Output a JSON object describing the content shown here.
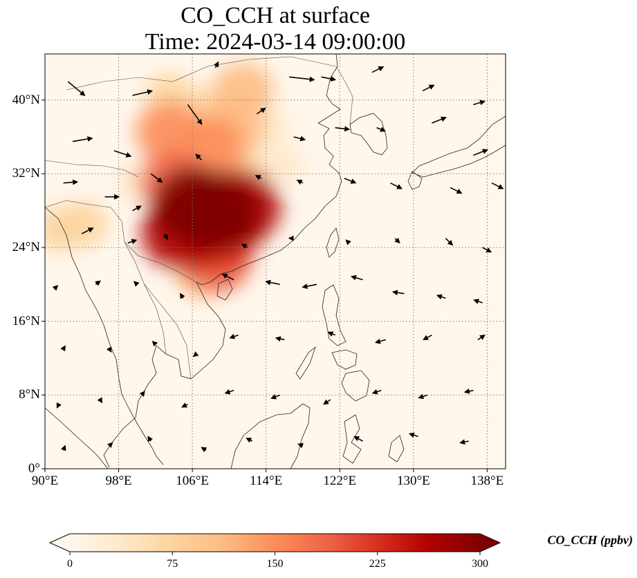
{
  "title": {
    "line1": "CO_CCH at surface",
    "line2": "Time: 2024-03-14 09:00:00"
  },
  "map": {
    "lon_range": [
      90,
      140
    ],
    "lat_range": [
      0,
      45
    ],
    "lat_ticks": [
      {
        "value": 0,
        "label": "0°"
      },
      {
        "value": 8,
        "label": "8°N"
      },
      {
        "value": 16,
        "label": "16°N"
      },
      {
        "value": 24,
        "label": "24°N"
      },
      {
        "value": 32,
        "label": "32°N"
      },
      {
        "value": 40,
        "label": "40°N"
      }
    ],
    "lon_ticks": [
      {
        "value": 90,
        "label": "90°E"
      },
      {
        "value": 98,
        "label": "98°E"
      },
      {
        "value": 106,
        "label": "106°E"
      },
      {
        "value": 114,
        "label": "114°E"
      },
      {
        "value": 122,
        "label": "122°E"
      },
      {
        "value": 130,
        "label": "130°E"
      },
      {
        "value": 138,
        "label": "138°E"
      }
    ],
    "gridlines": "dotted",
    "plume_regions": [
      {
        "lon": 106.3,
        "lat": 28.6,
        "level": 300
      },
      {
        "lon": 108.8,
        "lat": 27.6,
        "level": 290
      },
      {
        "lon": 111.0,
        "lat": 28.4,
        "level": 280
      },
      {
        "lon": 105.0,
        "lat": 25.6,
        "level": 270
      },
      {
        "lon": 109.0,
        "lat": 25.0,
        "level": 210
      },
      {
        "lon": 108.4,
        "lat": 22.6,
        "level": 190
      },
      {
        "lon": 104.0,
        "lat": 31.0,
        "level": 170
      },
      {
        "lon": 103.5,
        "lat": 36.5,
        "level": 150
      },
      {
        "lon": 108.0,
        "lat": 35.0,
        "level": 150
      },
      {
        "lon": 110.5,
        "lat": 37.0,
        "level": 130
      },
      {
        "lon": 107.0,
        "lat": 38.5,
        "level": 90
      },
      {
        "lon": 111.5,
        "lat": 41.0,
        "level": 120
      },
      {
        "lon": 103.5,
        "lat": 40.5,
        "level": 60
      },
      {
        "lon": 94.0,
        "lat": 26.5,
        "level": 70
      },
      {
        "lon": 91.5,
        "lat": 26.0,
        "level": 60
      },
      {
        "lon": 107.0,
        "lat": 21.0,
        "level": 80
      },
      {
        "lon": 111.0,
        "lat": 32.0,
        "level": 90
      },
      {
        "lon": 114.0,
        "lat": 37.0,
        "level": 50
      },
      {
        "lon": 116.0,
        "lat": 33.0,
        "level": 30
      },
      {
        "lon": 100.0,
        "lat": 31.0,
        "level": 35
      },
      {
        "lon": 130.0,
        "lat": 20.0,
        "level": 15
      }
    ],
    "wind_vectors": [
      {
        "lon": 92.5,
        "lat": 42.0,
        "u": 3.0,
        "v": -2.5
      },
      {
        "lon": 99.5,
        "lat": 40.5,
        "u": 3.5,
        "v": 0.8
      },
      {
        "lon": 105.5,
        "lat": 39.5,
        "u": 2.5,
        "v": -3.5
      },
      {
        "lon": 108.5,
        "lat": 43.5,
        "u": 0.5,
        "v": 1.0
      },
      {
        "lon": 116.5,
        "lat": 42.5,
        "u": 4.5,
        "v": -0.5
      },
      {
        "lon": 120.0,
        "lat": 42.5,
        "u": 2.5,
        "v": -0.5
      },
      {
        "lon": 125.5,
        "lat": 43.0,
        "u": 2.0,
        "v": 1.0
      },
      {
        "lon": 131.0,
        "lat": 41.0,
        "u": 2.0,
        "v": 1.0
      },
      {
        "lon": 136.5,
        "lat": 39.5,
        "u": 2.0,
        "v": 0.6
      },
      {
        "lon": 93.0,
        "lat": 35.5,
        "u": 3.5,
        "v": 0.6
      },
      {
        "lon": 97.5,
        "lat": 34.5,
        "u": 3.0,
        "v": -1.0
      },
      {
        "lon": 101.5,
        "lat": 32.0,
        "u": 2.0,
        "v": -1.5
      },
      {
        "lon": 107.0,
        "lat": 33.5,
        "u": -1.0,
        "v": 1.0
      },
      {
        "lon": 113.0,
        "lat": 38.5,
        "u": 1.5,
        "v": 1.0
      },
      {
        "lon": 117.0,
        "lat": 36.0,
        "u": 2.0,
        "v": -0.5
      },
      {
        "lon": 121.5,
        "lat": 37.0,
        "u": 2.5,
        "v": -0.3
      },
      {
        "lon": 126.0,
        "lat": 37.0,
        "u": 1.5,
        "v": -0.6
      },
      {
        "lon": 132.0,
        "lat": 37.5,
        "u": 2.5,
        "v": 1.0
      },
      {
        "lon": 136.5,
        "lat": 34.0,
        "u": 2.5,
        "v": 1.0
      },
      {
        "lon": 92.0,
        "lat": 31.0,
        "u": 2.5,
        "v": 0.2
      },
      {
        "lon": 96.5,
        "lat": 29.5,
        "u": 2.5,
        "v": 0.0
      },
      {
        "lon": 99.5,
        "lat": 28.0,
        "u": 1.5,
        "v": 0.8
      },
      {
        "lon": 113.5,
        "lat": 31.5,
        "u": -1.0,
        "v": 0.5
      },
      {
        "lon": 118.0,
        "lat": 31.0,
        "u": -1.0,
        "v": 0.5
      },
      {
        "lon": 122.5,
        "lat": 31.5,
        "u": 2.0,
        "v": -0.8
      },
      {
        "lon": 127.5,
        "lat": 31.0,
        "u": 2.0,
        "v": -1.0
      },
      {
        "lon": 134.0,
        "lat": 30.5,
        "u": 2.0,
        "v": -1.0
      },
      {
        "lon": 138.5,
        "lat": 31.0,
        "u": 2.0,
        "v": -1.0
      },
      {
        "lon": 94.0,
        "lat": 25.5,
        "u": 2.0,
        "v": 1.0
      },
      {
        "lon": 99.0,
        "lat": 24.5,
        "u": 1.5,
        "v": 0.5
      },
      {
        "lon": 103.0,
        "lat": 25.5,
        "u": 0.5,
        "v": -1.0
      },
      {
        "lon": 112.0,
        "lat": 24.0,
        "u": -1.0,
        "v": 0.6
      },
      {
        "lon": 117.0,
        "lat": 25.0,
        "u": -0.8,
        "v": 0.0
      },
      {
        "lon": 123.0,
        "lat": 24.5,
        "u": -0.5,
        "v": 0.5
      },
      {
        "lon": 128.0,
        "lat": 25.0,
        "u": 0.8,
        "v": -0.8
      },
      {
        "lon": 133.5,
        "lat": 25.0,
        "u": 1.2,
        "v": -1.2
      },
      {
        "lon": 137.5,
        "lat": 24.0,
        "u": 1.5,
        "v": -0.8
      },
      {
        "lon": 91.0,
        "lat": 19.5,
        "u": 0.6,
        "v": 0.6
      },
      {
        "lon": 95.5,
        "lat": 20.0,
        "u": 0.8,
        "v": 0.6
      },
      {
        "lon": 100.0,
        "lat": 20.0,
        "u": -0.5,
        "v": 0.5
      },
      {
        "lon": 105.0,
        "lat": 18.5,
        "u": -0.5,
        "v": 0.8
      },
      {
        "lon": 110.5,
        "lat": 20.5,
        "u": -2.0,
        "v": 1.0
      },
      {
        "lon": 115.5,
        "lat": 20.0,
        "u": -2.5,
        "v": 0.5
      },
      {
        "lon": 119.5,
        "lat": 20.0,
        "u": -2.5,
        "v": -0.5
      },
      {
        "lon": 124.5,
        "lat": 20.5,
        "u": -2.0,
        "v": 0.6
      },
      {
        "lon": 129.0,
        "lat": 19.0,
        "u": -2.0,
        "v": 0.3
      },
      {
        "lon": 133.5,
        "lat": 18.5,
        "u": -1.5,
        "v": 0.5
      },
      {
        "lon": 137.5,
        "lat": 18.0,
        "u": -1.5,
        "v": 0.5
      },
      {
        "lon": 92.0,
        "lat": 13.0,
        "u": 0.3,
        "v": 0.5
      },
      {
        "lon": 97.0,
        "lat": 13.0,
        "u": 0.3,
        "v": -0.5
      },
      {
        "lon": 102.0,
        "lat": 13.5,
        "u": -0.5,
        "v": 0.5
      },
      {
        "lon": 106.5,
        "lat": 12.5,
        "u": -0.6,
        "v": -0.5
      },
      {
        "lon": 111.0,
        "lat": 14.5,
        "u": -1.5,
        "v": -0.5
      },
      {
        "lon": 116.0,
        "lat": 14.0,
        "u": -1.5,
        "v": 0.3
      },
      {
        "lon": 121.5,
        "lat": 14.5,
        "u": -1.2,
        "v": 0.5
      },
      {
        "lon": 127.0,
        "lat": 14.0,
        "u": -1.8,
        "v": -0.5
      },
      {
        "lon": 132.0,
        "lat": 14.5,
        "u": -1.5,
        "v": -0.8
      },
      {
        "lon": 137.0,
        "lat": 14.0,
        "u": 1.2,
        "v": 0.8
      },
      {
        "lon": 91.5,
        "lat": 7.0,
        "u": -0.3,
        "v": -0.6
      },
      {
        "lon": 96.0,
        "lat": 7.5,
        "u": 0.3,
        "v": -0.5
      },
      {
        "lon": 100.5,
        "lat": 8.0,
        "u": 0.5,
        "v": 0.6
      },
      {
        "lon": 105.5,
        "lat": 7.0,
        "u": -1.0,
        "v": -0.5
      },
      {
        "lon": 110.5,
        "lat": 8.5,
        "u": -1.5,
        "v": -0.5
      },
      {
        "lon": 115.5,
        "lat": 8.0,
        "u": -1.5,
        "v": -0.6
      },
      {
        "lon": 121.0,
        "lat": 7.5,
        "u": -1.2,
        "v": -0.8
      },
      {
        "lon": 126.5,
        "lat": 8.5,
        "u": -1.5,
        "v": -0.5
      },
      {
        "lon": 131.5,
        "lat": 8.0,
        "u": -1.5,
        "v": -0.5
      },
      {
        "lon": 136.5,
        "lat": 8.5,
        "u": -1.5,
        "v": -0.3
      },
      {
        "lon": 92.0,
        "lat": 2.0,
        "u": 0.3,
        "v": 0.8
      },
      {
        "lon": 97.0,
        "lat": 2.5,
        "u": 0.5,
        "v": 0.5
      },
      {
        "lon": 101.5,
        "lat": 3.0,
        "u": -0.5,
        "v": 0.8
      },
      {
        "lon": 107.5,
        "lat": 2.0,
        "u": -0.8,
        "v": 0.5
      },
      {
        "lon": 112.5,
        "lat": 3.0,
        "u": -1.0,
        "v": 0.5
      },
      {
        "lon": 118.0,
        "lat": 2.5,
        "u": -0.8,
        "v": 0.3
      },
      {
        "lon": 124.5,
        "lat": 3.0,
        "u": -1.5,
        "v": 0.8
      },
      {
        "lon": 130.5,
        "lat": 3.5,
        "u": -1.5,
        "v": 0.5
      },
      {
        "lon": 136.0,
        "lat": 3.0,
        "u": -1.5,
        "v": -0.3
      }
    ]
  },
  "colorbar": {
    "min": 0,
    "max": 300,
    "ticks": [
      "0",
      "75",
      "150",
      "225",
      "300"
    ],
    "label": "CO_CCH (ppbv)",
    "colors": [
      "#fff7ec",
      "#fee8c8",
      "#fdd49e",
      "#fdbb84",
      "#fc8d59",
      "#ef6548",
      "#d7301f",
      "#b30000",
      "#7f0000"
    ],
    "extend": "both"
  }
}
